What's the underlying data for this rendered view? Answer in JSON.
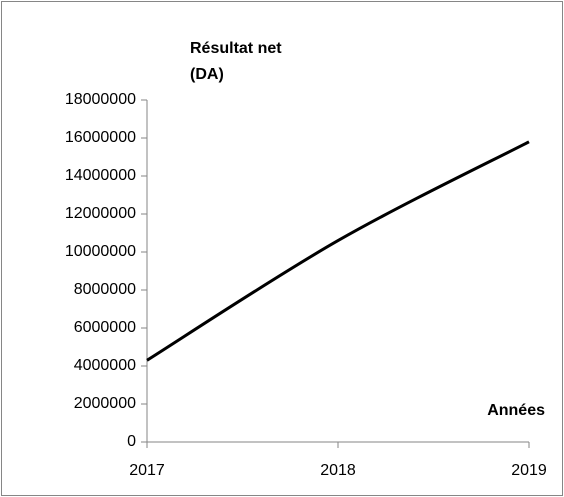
{
  "chart_data": {
    "type": "line",
    "y_label": "Résultat net (DA)",
    "x_label": "Années",
    "categories": [
      "2017",
      "2018",
      "2019"
    ],
    "values": [
      4300000,
      10600000,
      15800000
    ],
    "color": "#000000",
    "smooth": true,
    "ylim": [
      0,
      18000000
    ],
    "yticks": [
      0,
      2000000,
      4000000,
      6000000,
      8000000,
      10000000,
      12000000,
      14000000,
      16000000,
      18000000
    ]
  }
}
